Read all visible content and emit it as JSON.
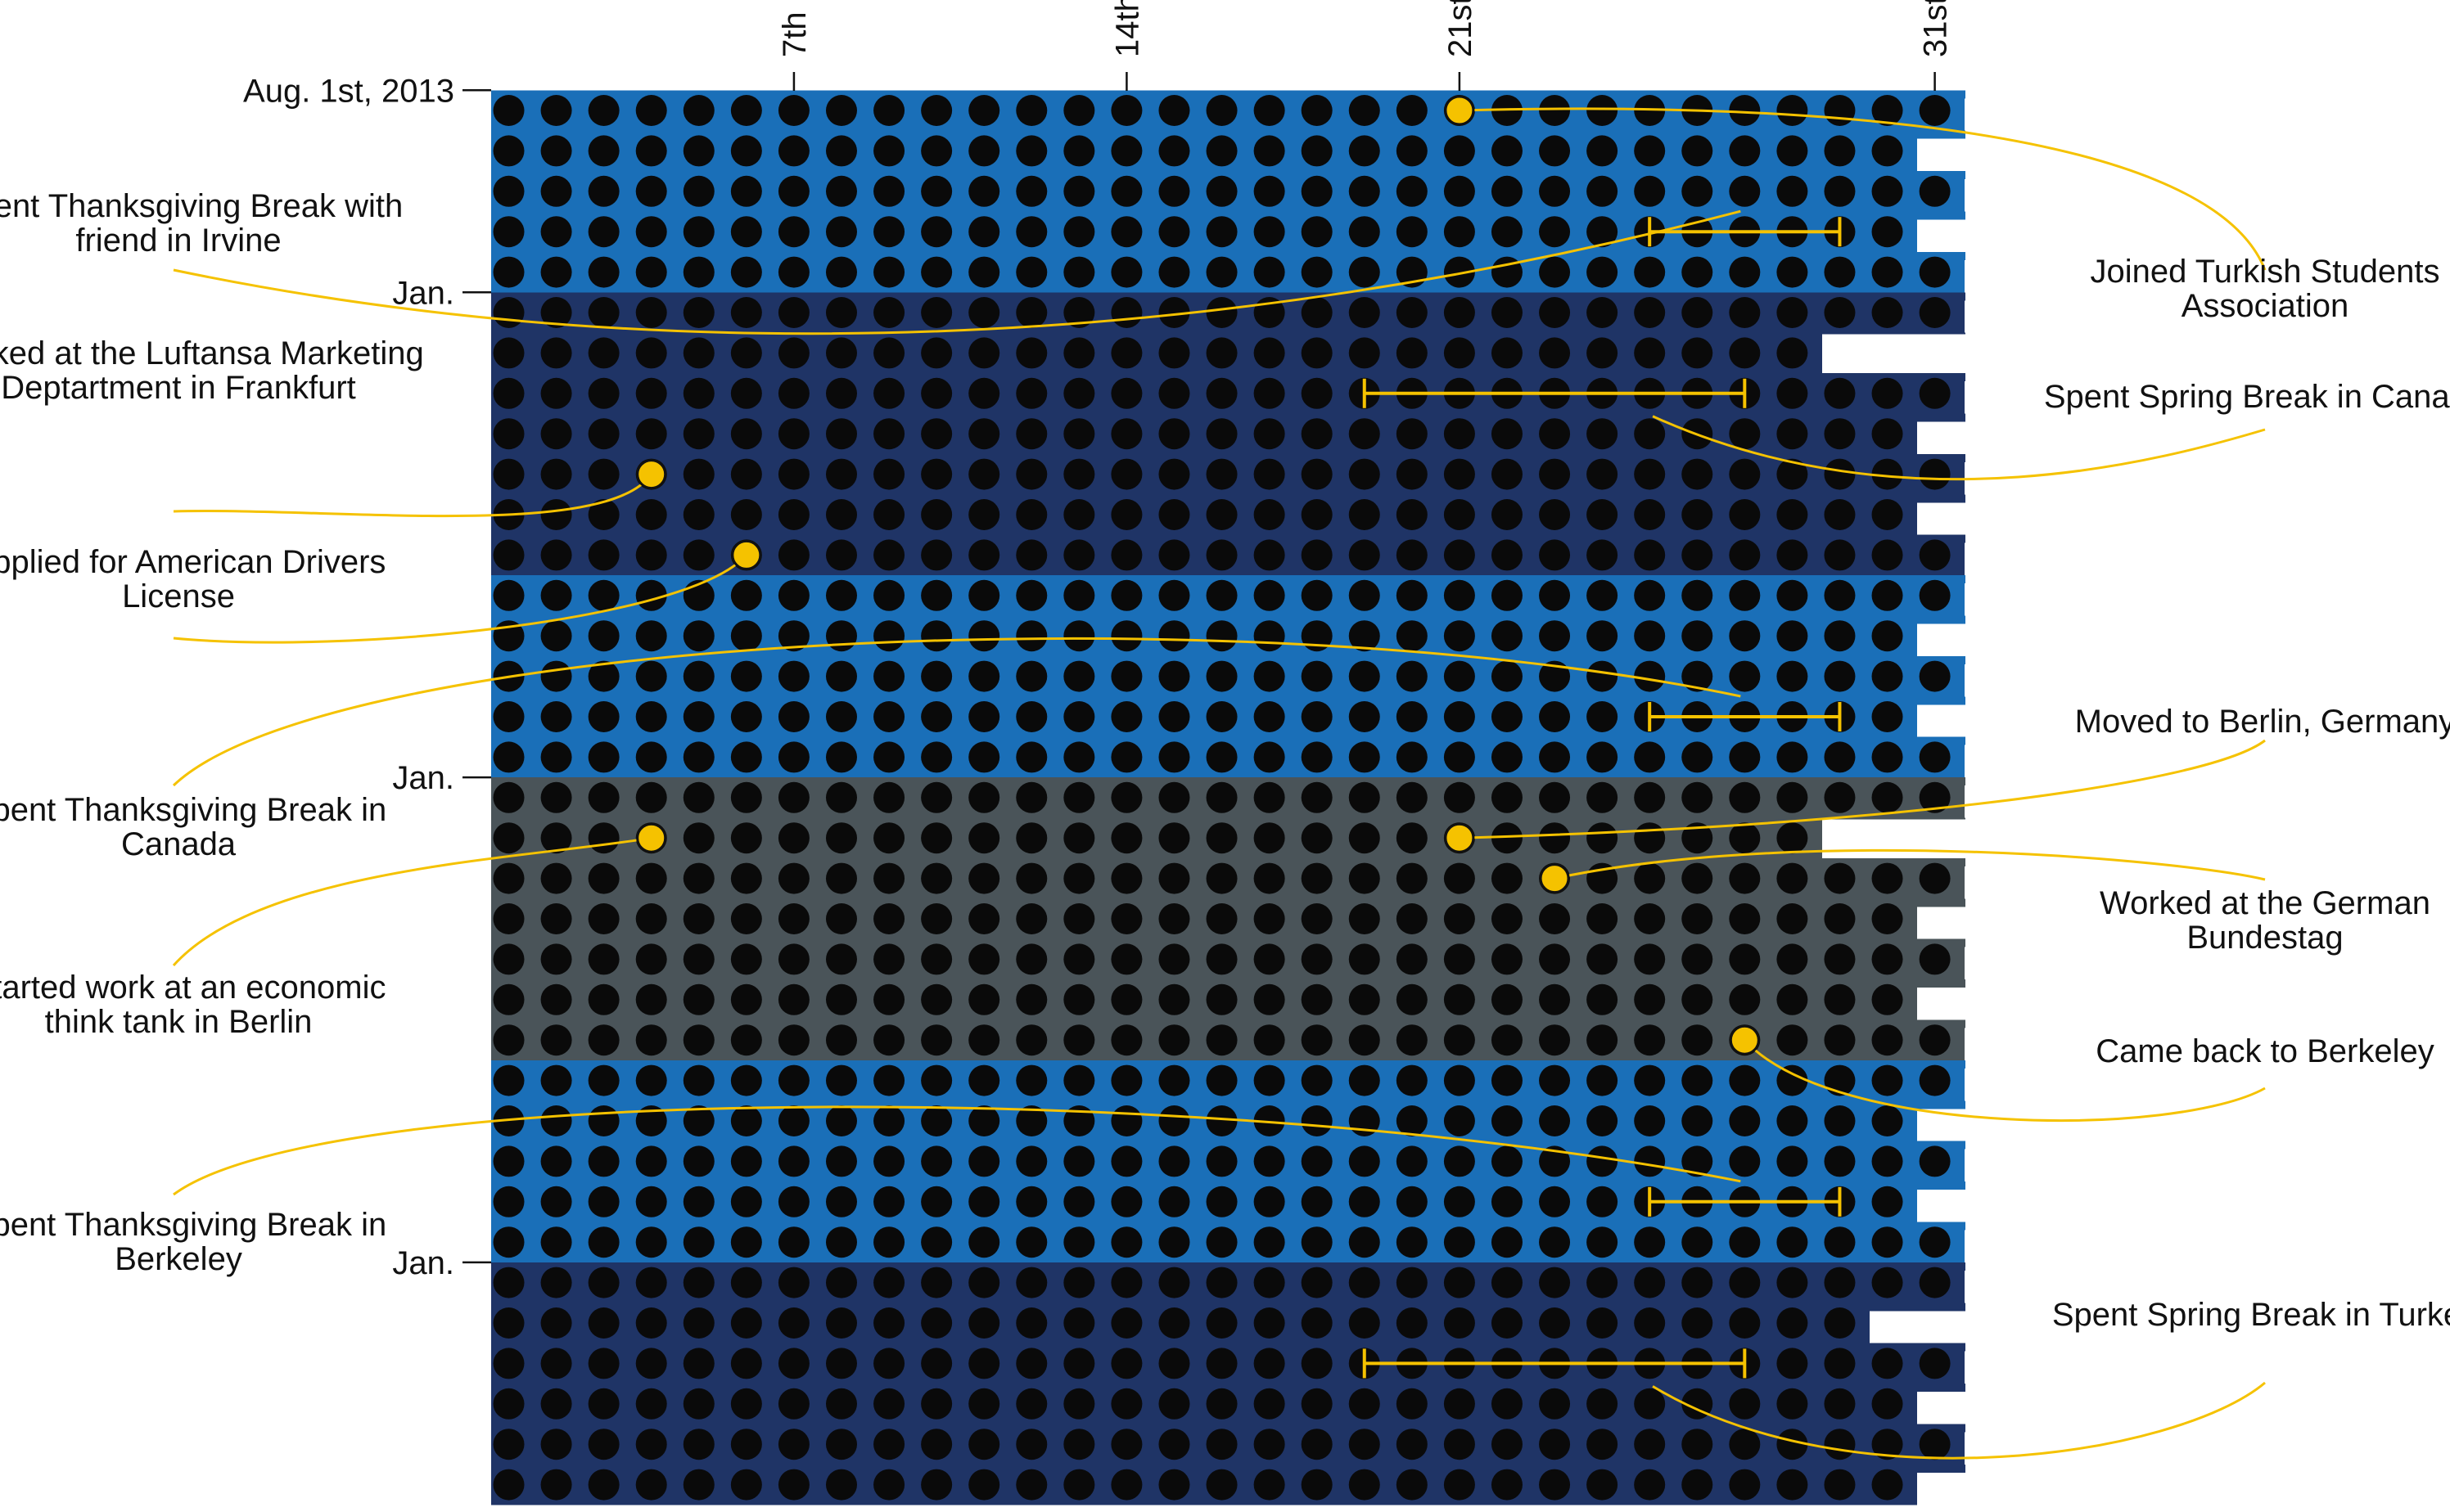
{
  "chart_data": {
    "type": "scatter",
    "start_label": "Aug. 1st, 2013",
    "day_ticks": [
      {
        "day": 7,
        "label": "7th"
      },
      {
        "day": 14,
        "label": "14th"
      },
      {
        "day": 21,
        "label": "21st"
      },
      {
        "day": 31,
        "label": "31st"
      }
    ],
    "row_labels": [
      {
        "date": "2013-08",
        "label": "Aug. 1st, 2013"
      },
      {
        "date": "2014-01",
        "label": "Jan."
      },
      {
        "date": "2015-01",
        "label": "Jan."
      },
      {
        "date": "2016-01",
        "label": "Jan."
      }
    ],
    "months": [
      "2013-08",
      "2013-09",
      "2013-10",
      "2013-11",
      "2013-12",
      "2014-01",
      "2014-02",
      "2014-03",
      "2014-04",
      "2014-05",
      "2014-06",
      "2014-07",
      "2014-08",
      "2014-09",
      "2014-10",
      "2014-11",
      "2014-12",
      "2015-01",
      "2015-02",
      "2015-03",
      "2015-04",
      "2015-05",
      "2015-06",
      "2015-07",
      "2015-08",
      "2015-09",
      "2015-10",
      "2015-11",
      "2015-12",
      "2016-01",
      "2016-02",
      "2016-03",
      "2016-04",
      "2016-05",
      "2016-06"
    ],
    "periods": [
      {
        "from": "2013-08",
        "to": "2013-12",
        "color": "#1a6fb8"
      },
      {
        "from": "2014-01",
        "to": "2014-07",
        "color": "#1f3466"
      },
      {
        "from": "2014-08",
        "to": "2014-12",
        "color": "#1a6fb8"
      },
      {
        "from": "2015-01",
        "to": "2015-07",
        "color": "#4a5459"
      },
      {
        "from": "2015-08",
        "to": "2015-12",
        "color": "#1a6fb8"
      },
      {
        "from": "2016-01",
        "to": "2016-06",
        "color": "#1f3466"
      }
    ],
    "dot_color": "#0a0a0a",
    "highlight_color": "#f5c200",
    "events": [
      {
        "type": "point",
        "date": "2013-08-21",
        "label": "Joined Turkish Students Association",
        "side": "right"
      },
      {
        "type": "range",
        "from": "2013-11-25",
        "to": "2013-11-29",
        "label": "Spent Thanksgiving Break with friend in Irvine",
        "side": "left"
      },
      {
        "type": "range",
        "from": "2014-03-19",
        "to": "2014-03-27",
        "label": "Spent Spring Break in Canada",
        "side": "right"
      },
      {
        "type": "point",
        "date": "2014-05-04",
        "label": "Worked at the Luftansa Marketing Deptartment in Frankfurt",
        "side": "left"
      },
      {
        "type": "point",
        "date": "2014-07-06",
        "label": "Applied for American Drivers License",
        "side": "left"
      },
      {
        "type": "range",
        "from": "2014-11-25",
        "to": "2014-11-29",
        "label": "Spent Thanksgiving Break in Canada",
        "side": "left"
      },
      {
        "type": "point",
        "date": "2015-02-21",
        "label": "Moved to Berlin, Germany",
        "side": "right"
      },
      {
        "type": "point",
        "date": "2015-02-04",
        "label": "Started work at an economic think tank in Berlin",
        "side": "left"
      },
      {
        "type": "point",
        "date": "2015-03-23",
        "label": "Worked at the German Bundestag",
        "side": "right"
      },
      {
        "type": "point",
        "date": "2015-07-27",
        "label": "Came back to Berkeley",
        "side": "right"
      },
      {
        "type": "range",
        "from": "2015-11-25",
        "to": "2015-11-29",
        "label": "Spent Thanksgiving Break in Berkeley",
        "side": "left"
      },
      {
        "type": "range",
        "from": "2016-03-19",
        "to": "2016-03-27",
        "label": "Spent Spring Break in Turkey",
        "side": "right"
      }
    ]
  }
}
